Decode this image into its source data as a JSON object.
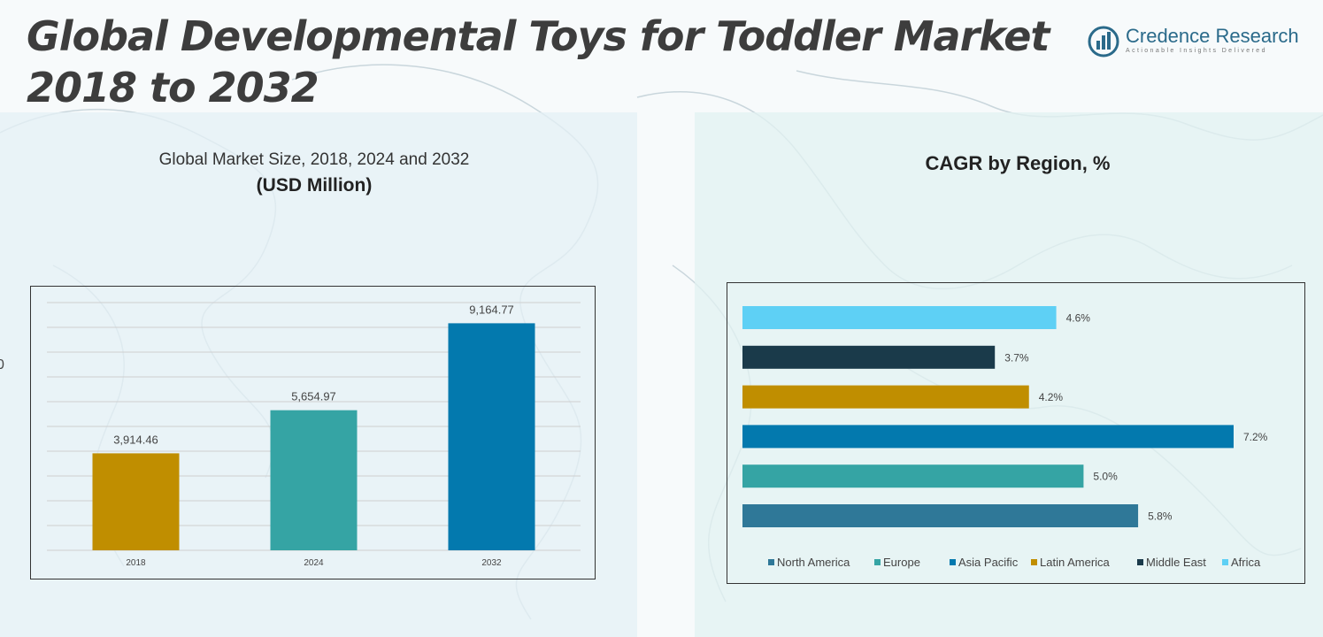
{
  "header": {
    "title_line1": "Global Developmental Toys for Toddler Market",
    "title_line2": "2018 to 2032"
  },
  "logo": {
    "name": "Credence Research",
    "tagline": "Actionable Insights Delivered",
    "icon": "bar-chart-circle-icon"
  },
  "left_panel": {
    "subtitle": "Global Market Size, 2018, 2024 and 2032",
    "unit": "(USD Million)"
  },
  "right_panel": {
    "title": "CAGR by Region, %"
  },
  "stray_text": "0",
  "chart_data": [
    {
      "type": "bar",
      "title": "Global Market Size, 2018, 2024 and 2032",
      "ylabel": "(USD Million)",
      "categories": [
        "2018",
        "2024",
        "2032"
      ],
      "values": [
        3914.46,
        5654.97,
        9164.77
      ],
      "labels": [
        "3,914.46",
        "5,654.97",
        "9,164.77"
      ],
      "colors": [
        "#c08e00",
        "#35a4a4",
        "#0379ae"
      ],
      "ylim": [
        0,
        10000
      ],
      "grid": true,
      "legend": "none"
    },
    {
      "type": "bar",
      "orientation": "horizontal",
      "title": "CAGR by Region, %",
      "categories": [
        "Africa",
        "Middle East",
        "Latin America",
        "Asia Pacific",
        "Europe",
        "North America"
      ],
      "values": [
        4.6,
        3.7,
        4.2,
        7.2,
        5.0,
        5.8
      ],
      "labels": [
        "4.6%",
        "3.7%",
        "4.2%",
        "7.2%",
        "5.0%",
        "5.8%"
      ],
      "colors": [
        "#5ed0f5",
        "#1a3a4a",
        "#c08e00",
        "#0379ae",
        "#35a4a4",
        "#2f7898"
      ],
      "xlim": [
        0,
        7.2
      ],
      "legend": "bottom",
      "legend_order": [
        "North America",
        "Europe",
        "Asia Pacific",
        "Latin America",
        "Middle East",
        "Africa"
      ]
    }
  ]
}
